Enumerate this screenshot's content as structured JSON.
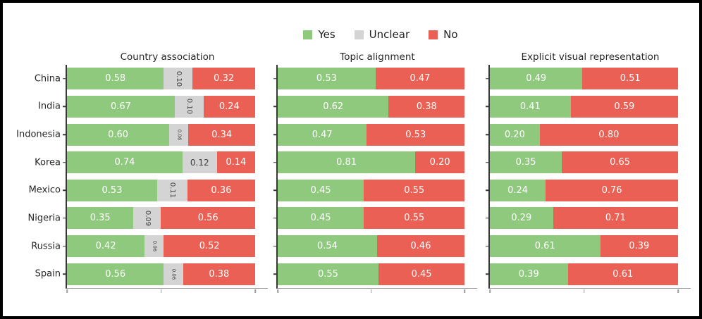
{
  "figure": {
    "background": "#ffffff",
    "frame_color": "#000000"
  },
  "legend": {
    "items": [
      {
        "label": "Yes",
        "color": "#8fc97e"
      },
      {
        "label": "Unclear",
        "color": "#d4d4d4"
      },
      {
        "label": "No",
        "color": "#ea6054"
      }
    ]
  },
  "colors": {
    "yes": "#8fc97e",
    "unclear": "#d4d4d4",
    "no": "#ea6054",
    "bar_value_text": "#ffffff",
    "unclear_value_text": "#3f3f3f",
    "axis_left_spine": "#383838",
    "axis_bottom_spine": "#9c9c9c",
    "text": "#262626"
  },
  "chart_data": [
    {
      "type": "bar",
      "orientation": "horizontal",
      "stacked": true,
      "title": "Country association",
      "categories": [
        "China",
        "India",
        "Indonesia",
        "Korea",
        "Mexico",
        "Nigeria",
        "Russia",
        "Spain"
      ],
      "series": [
        {
          "name": "Yes",
          "color": "#8fc97e",
          "values": [
            0.58,
            0.67,
            0.6,
            0.74,
            0.53,
            0.35,
            0.42,
            0.56
          ]
        },
        {
          "name": "Unclear",
          "color": "#d4d4d4",
          "values": [
            0.1,
            0.1,
            0.06,
            0.12,
            0.11,
            0.09,
            0.06,
            0.06
          ]
        },
        {
          "name": "No",
          "color": "#ea6054",
          "values": [
            0.32,
            0.24,
            0.34,
            0.14,
            0.36,
            0.56,
            0.52,
            0.38
          ]
        }
      ],
      "xlim": [
        0,
        1.07
      ],
      "xticks": [
        0,
        0.5,
        1.0
      ],
      "xtick_labels_visible": false,
      "show_category_labels": true,
      "grid": false
    },
    {
      "type": "bar",
      "orientation": "horizontal",
      "stacked": true,
      "title": "Topic alignment",
      "categories": [
        "China",
        "India",
        "Indonesia",
        "Korea",
        "Mexico",
        "Nigeria",
        "Russia",
        "Spain"
      ],
      "series": [
        {
          "name": "Yes",
          "color": "#8fc97e",
          "values": [
            0.53,
            0.62,
            0.47,
            0.81,
            0.45,
            0.45,
            0.54,
            0.55
          ]
        },
        {
          "name": "No",
          "color": "#ea6054",
          "values": [
            0.47,
            0.38,
            0.53,
            0.2,
            0.55,
            0.55,
            0.46,
            0.45
          ]
        }
      ],
      "xlim": [
        0,
        1.07
      ],
      "xticks": [
        0,
        0.5,
        1.0
      ],
      "xtick_labels_visible": false,
      "show_category_labels": false,
      "grid": false
    },
    {
      "type": "bar",
      "orientation": "horizontal",
      "stacked": true,
      "title": "Explicit visual representation",
      "categories": [
        "China",
        "India",
        "Indonesia",
        "Korea",
        "Mexico",
        "Nigeria",
        "Russia",
        "Spain"
      ],
      "series": [
        {
          "name": "Yes",
          "color": "#8fc97e",
          "values": [
            0.49,
            0.41,
            0.2,
            0.35,
            0.24,
            0.29,
            0.61,
            0.39
          ]
        },
        {
          "name": "No",
          "color": "#ea6054",
          "values": [
            0.51,
            0.59,
            0.8,
            0.65,
            0.76,
            0.71,
            0.39,
            0.61
          ]
        }
      ],
      "xlim": [
        0,
        1.07
      ],
      "xticks": [
        0,
        0.5,
        1.0
      ],
      "xtick_labels_visible": false,
      "show_category_labels": false,
      "grid": false
    }
  ],
  "value_label_format": "two_decimals"
}
